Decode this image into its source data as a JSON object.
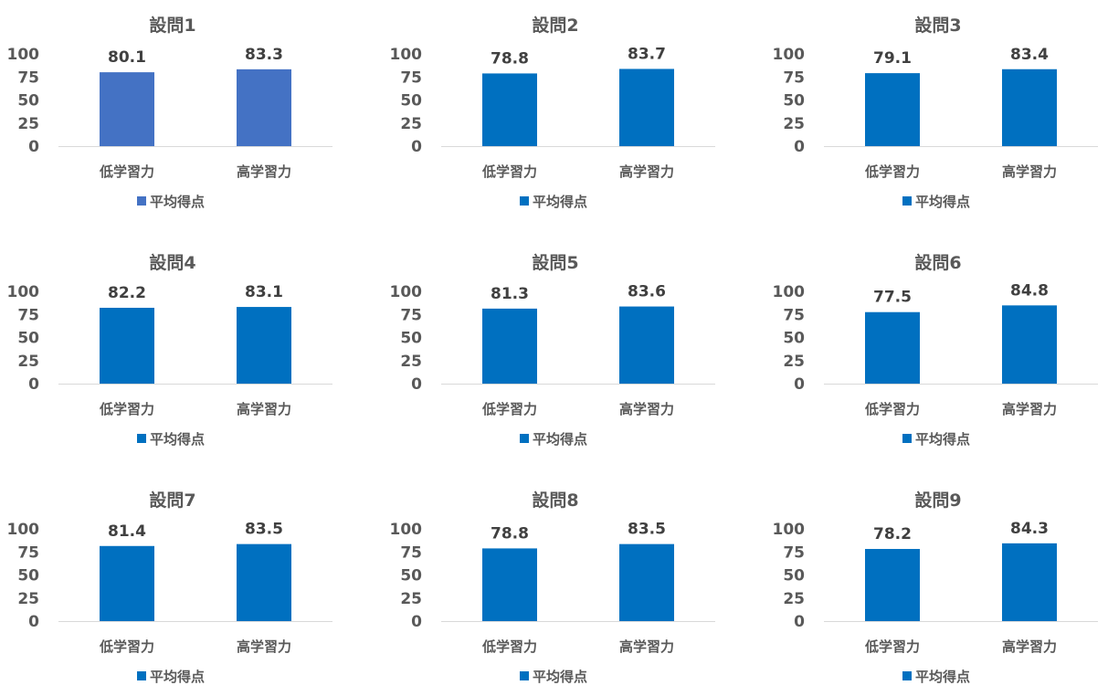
{
  "chart_data": [
    {
      "type": "bar",
      "title": "設問1",
      "categories": [
        "低学習力",
        "高学習力"
      ],
      "series": [
        {
          "name": "平均得点",
          "values": [
            80.1,
            83.3
          ]
        }
      ],
      "ylim": [
        0,
        100
      ],
      "yticks": [
        0,
        25,
        50,
        75,
        100
      ],
      "color": "#4472C4",
      "legend": "bottom-left"
    },
    {
      "type": "bar",
      "title": "設問2",
      "categories": [
        "低学習力",
        "高学習力"
      ],
      "series": [
        {
          "name": "平均得点",
          "values": [
            78.8,
            83.7
          ]
        }
      ],
      "ylim": [
        0,
        100
      ],
      "yticks": [
        0,
        25,
        50,
        75,
        100
      ],
      "color": "#0070C0",
      "legend": "bottom-left"
    },
    {
      "type": "bar",
      "title": "設問3",
      "categories": [
        "低学習力",
        "高学習力"
      ],
      "series": [
        {
          "name": "平均得点",
          "values": [
            79.1,
            83.4
          ]
        }
      ],
      "ylim": [
        0,
        100
      ],
      "yticks": [
        0,
        25,
        50,
        75,
        100
      ],
      "color": "#0070C0",
      "legend": "bottom-left"
    },
    {
      "type": "bar",
      "title": "設問4",
      "categories": [
        "低学習力",
        "高学習力"
      ],
      "series": [
        {
          "name": "平均得点",
          "values": [
            82.2,
            83.1
          ]
        }
      ],
      "ylim": [
        0,
        100
      ],
      "yticks": [
        0,
        25,
        50,
        75,
        100
      ],
      "color": "#0070C0",
      "legend": "bottom-left"
    },
    {
      "type": "bar",
      "title": "設問5",
      "categories": [
        "低学習力",
        "高学習力"
      ],
      "series": [
        {
          "name": "平均得点",
          "values": [
            81.3,
            83.6
          ]
        }
      ],
      "ylim": [
        0,
        100
      ],
      "yticks": [
        0,
        25,
        50,
        75,
        100
      ],
      "color": "#0070C0",
      "legend": "bottom-left"
    },
    {
      "type": "bar",
      "title": "設問6",
      "categories": [
        "低学習力",
        "高学習力"
      ],
      "series": [
        {
          "name": "平均得点",
          "values": [
            77.5,
            84.8
          ]
        }
      ],
      "ylim": [
        0,
        100
      ],
      "yticks": [
        0,
        25,
        50,
        75,
        100
      ],
      "color": "#0070C0",
      "legend": "bottom-left"
    },
    {
      "type": "bar",
      "title": "設問7",
      "categories": [
        "低学習力",
        "高学習力"
      ],
      "series": [
        {
          "name": "平均得点",
          "values": [
            81.4,
            83.5
          ]
        }
      ],
      "ylim": [
        0,
        100
      ],
      "yticks": [
        0,
        25,
        50,
        75,
        100
      ],
      "color": "#0070C0",
      "legend": "bottom-left"
    },
    {
      "type": "bar",
      "title": "設問8",
      "categories": [
        "低学習力",
        "高学習力"
      ],
      "series": [
        {
          "name": "平均得点",
          "values": [
            78.8,
            83.5
          ]
        }
      ],
      "ylim": [
        0,
        100
      ],
      "yticks": [
        0,
        25,
        50,
        75,
        100
      ],
      "color": "#0070C0",
      "legend": "bottom-left"
    },
    {
      "type": "bar",
      "title": "設問9",
      "categories": [
        "低学習力",
        "高学習力"
      ],
      "series": [
        {
          "name": "平均得点",
          "values": [
            78.2,
            84.3
          ]
        }
      ],
      "ylim": [
        0,
        100
      ],
      "yticks": [
        0,
        25,
        50,
        75,
        100
      ],
      "color": "#0070C0",
      "legend": "bottom-left"
    }
  ]
}
